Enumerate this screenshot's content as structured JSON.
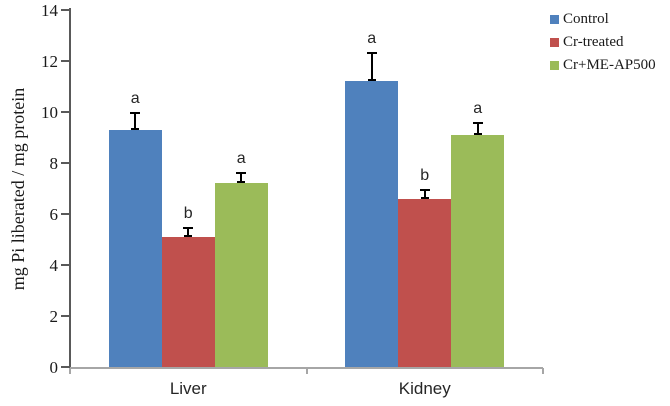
{
  "chart_data": {
    "type": "bar",
    "title": "",
    "xlabel": "",
    "ylabel": "mg Pi liberated / mg protein",
    "ylim": [
      0,
      14
    ],
    "yticks": [
      0,
      2,
      4,
      6,
      8,
      10,
      12,
      14
    ],
    "grid": false,
    "legend_position": "top-right",
    "categories": [
      "Liver",
      "Kidney"
    ],
    "series": [
      {
        "name": "Control",
        "color": "#4F81BD",
        "values": [
          9.3,
          11.2
        ],
        "errors": [
          0.65,
          1.1
        ],
        "sig_labels": [
          "a",
          "a"
        ]
      },
      {
        "name": "Cr-treated",
        "color": "#C0504D",
        "values": [
          5.1,
          6.6
        ],
        "errors": [
          0.35,
          0.35
        ],
        "sig_labels": [
          "b",
          "b"
        ]
      },
      {
        "name": "Cr+ME-AP500",
        "color": "#9BBB59",
        "values": [
          7.2,
          9.1
        ],
        "errors": [
          0.4,
          0.45
        ],
        "sig_labels": [
          "a",
          "a"
        ]
      }
    ]
  },
  "colors": {
    "y_axis": "#595959",
    "x_axis": "#A6A6A6",
    "error_bar": "#000000",
    "text": "#1A1A1A"
  }
}
